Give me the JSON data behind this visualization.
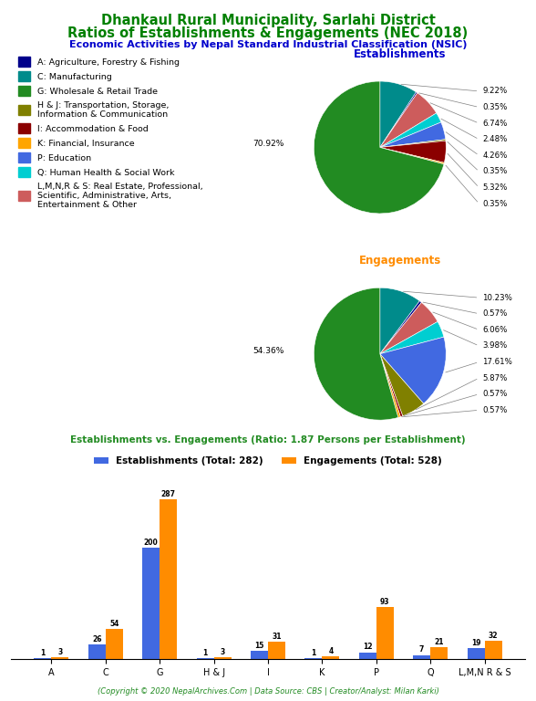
{
  "title_line1": "Dhankaul Rural Municipality, Sarlahi District",
  "title_line2": "Ratios of Establishments & Engagements (NEC 2018)",
  "subtitle": "Economic Activities by Nepal Standard Industrial Classification (NSIC)",
  "title_color": "#008000",
  "subtitle_color": "#0000CC",
  "establishments_label": "Establishments",
  "engagements_label": "Engagements",
  "est_label_color": "#0000CC",
  "eng_label_color": "#FF8C00",
  "categories": [
    "A",
    "C",
    "G",
    "H & J",
    "I",
    "K",
    "P",
    "Q",
    "L,M,N R & S"
  ],
  "est_values": [
    1,
    26,
    200,
    1,
    15,
    1,
    12,
    7,
    19
  ],
  "eng_values": [
    3,
    54,
    287,
    3,
    31,
    4,
    93,
    21,
    32
  ],
  "est_total": 282,
  "eng_total": 528,
  "ratio": 1.87,
  "est_pie_pcts": [
    "9.22%",
    "0.35%",
    "6.74%",
    "2.48%",
    "4.26%",
    "0.35%",
    "5.32%",
    "0.35%",
    "70.92%"
  ],
  "eng_pie_pcts": [
    "10.23%",
    "0.57%",
    "6.06%",
    "3.98%",
    "17.61%",
    "5.87%",
    "0.57%",
    "0.57%",
    "54.36%"
  ],
  "est_pie_values": [
    9.22,
    0.35,
    6.74,
    2.48,
    4.26,
    0.35,
    5.32,
    0.35,
    70.92
  ],
  "eng_pie_values": [
    10.23,
    0.57,
    6.06,
    3.98,
    17.61,
    5.87,
    0.57,
    0.57,
    54.36
  ],
  "pie_colors_ordered": [
    "#008B8B",
    "#00008B",
    "#CD5C5C",
    "#00CED1",
    "#4169E1",
    "#808000",
    "#8B0000",
    "#FFA500",
    "#228B22"
  ],
  "legend_colors": [
    "#00008B",
    "#008B8B",
    "#228B22",
    "#808000",
    "#8B0000",
    "#FFA500",
    "#4169E1",
    "#00CED1",
    "#CD5C5C"
  ],
  "legend_labels": [
    "A: Agriculture, Forestry & Fishing",
    "C: Manufacturing",
    "G: Wholesale & Retail Trade",
    "H & J: Transportation, Storage,\nInformation & Communication",
    "I: Accommodation & Food",
    "K: Financial, Insurance",
    "P: Education",
    "Q: Human Health & Social Work",
    "L,M,N,R & S: Real Estate, Professional,\nScientific, Administrative, Arts,\nEntertainment & Other"
  ],
  "bar_title": "Establishments vs. Engagements (Ratio: 1.87 Persons per Establishment)",
  "bar_title_color": "#228B22",
  "est_bar_color": "#4169E1",
  "eng_bar_color": "#FF8C00",
  "footer": "(Copyright © 2020 NepalArchives.Com | Data Source: CBS | Creator/Analyst: Milan Karki)",
  "footer_color": "#228B22"
}
